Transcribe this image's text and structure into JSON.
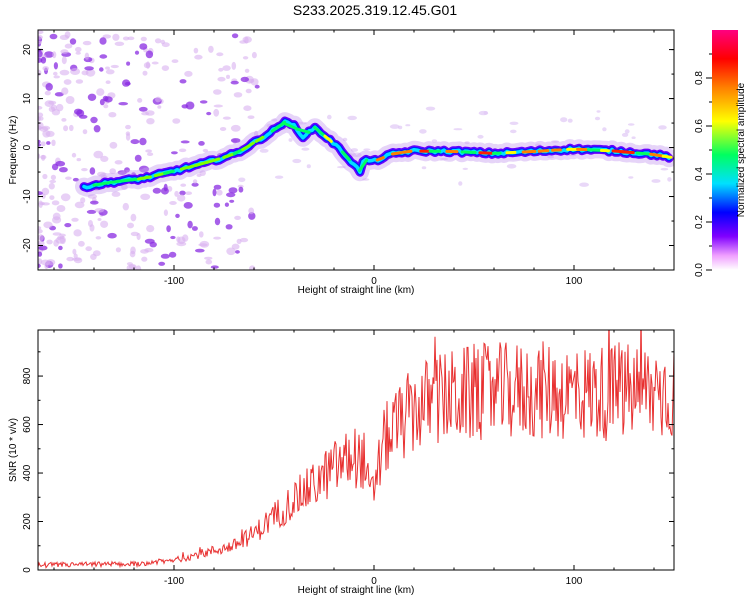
{
  "title": "S233.2025.319.12.45.G01",
  "chart_data": [
    {
      "type": "heatmap",
      "name": "spectrogram",
      "xlabel": "Height of straight line (km)",
      "ylabel": "Frequency (Hz)",
      "xlim": [
        -168,
        150
      ],
      "ylim": [
        -25,
        24
      ],
      "xticks": [
        -100,
        0,
        100
      ],
      "xtick_labels": [
        "-100",
        "0",
        "100"
      ],
      "yticks": [
        20,
        10,
        0,
        -10,
        -20
      ],
      "ytick_labels": [
        "20",
        "10",
        "0",
        "-10",
        "-20"
      ],
      "ridge": {
        "x": [
          -145,
          -130,
          -115,
          -100,
          -85,
          -75,
          -68,
          -60,
          -52,
          -45,
          -40,
          -35,
          -30,
          -25,
          -20,
          -15,
          -10,
          -7,
          -5,
          0,
          10,
          20,
          40,
          60,
          80,
          100,
          120,
          140,
          148
        ],
        "y": [
          -8,
          -7,
          -6.3,
          -4.8,
          -3.2,
          -2,
          -1,
          1,
          3,
          5.2,
          4.5,
          2,
          4.2,
          2.5,
          0.8,
          -1.2,
          -3.5,
          -4.8,
          -2.5,
          -2.8,
          -1.2,
          -0.7,
          -0.8,
          -1.2,
          -0.8,
          -0.3,
          -0.7,
          -1.4,
          -2
        ]
      },
      "colorbar": {
        "label": "Normalized spectral amplitude",
        "range": [
          0,
          1
        ],
        "ticks": [
          "0.0",
          "0.2",
          "0.4",
          "0.6",
          "0.8"
        ],
        "colors": [
          "#ffffff",
          "#f0a0ff",
          "#8000ff",
          "#0000ff",
          "#00e0ff",
          "#00ff60",
          "#ffff00",
          "#ff8000",
          "#ff0000",
          "#ff0080"
        ]
      }
    },
    {
      "type": "line",
      "name": "snr",
      "xlabel": "Height of straight line (km)",
      "ylabel": "SNR (10 * v/v)",
      "xlim": [
        -168,
        150
      ],
      "ylim": [
        0,
        990
      ],
      "xticks": [
        -100,
        0,
        100
      ],
      "xtick_labels": [
        "-100",
        "0",
        "100"
      ],
      "yticks": [
        0,
        200,
        400,
        600,
        800
      ],
      "ytick_labels": [
        "0",
        "200",
        "400",
        "600",
        "800"
      ],
      "color": "#e83030",
      "trend": {
        "x": [
          -168,
          -120,
          -100,
          -80,
          -70,
          -60,
          -50,
          -40,
          -30,
          -20,
          -10,
          -5,
          -2,
          0,
          5,
          10,
          20,
          30,
          50,
          80,
          110,
          150
        ],
        "y": [
          20,
          25,
          40,
          80,
          100,
          150,
          220,
          290,
          350,
          420,
          470,
          450,
          300,
          330,
          530,
          580,
          660,
          700,
          730,
          740,
          730,
          740
        ]
      }
    }
  ]
}
